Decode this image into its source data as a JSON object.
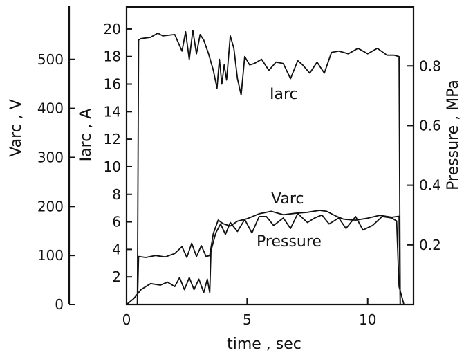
{
  "chart_data": {
    "type": "line",
    "xlabel": "time , sec",
    "x_ticks": [
      0,
      5,
      10
    ],
    "xlim": [
      0,
      11.9
    ],
    "axes": {
      "varc": {
        "label": "Varc , V",
        "ticks": [
          0,
          100,
          200,
          300,
          400,
          500
        ],
        "lim": [
          0,
          590
        ]
      },
      "iarc": {
        "label": "Iarc , A",
        "ticks": [
          2,
          4,
          6,
          8,
          10,
          12,
          14,
          16,
          18,
          20
        ],
        "lim": [
          0,
          21
        ]
      },
      "pressure": {
        "label": "Pressure , MPa",
        "ticks": [
          0.2,
          0.4,
          0.6,
          0.8
        ],
        "lim": [
          0,
          0.97
        ]
      }
    },
    "series": [
      {
        "name": "Iarc",
        "axis": "iarc",
        "x": [
          0.45,
          0.5,
          0.6,
          1.0,
          1.3,
          1.5,
          2.0,
          2.3,
          2.45,
          2.6,
          2.75,
          2.9,
          3.05,
          3.2,
          3.4,
          3.6,
          3.75,
          3.85,
          3.95,
          4.05,
          4.15,
          4.3,
          4.45,
          4.6,
          4.75,
          4.9,
          5.1,
          5.3,
          5.6,
          5.9,
          6.2,
          6.5,
          6.8,
          7.1,
          7.3,
          7.6,
          7.9,
          8.2,
          8.5,
          8.8,
          9.2,
          9.6,
          10.0,
          10.4,
          10.8,
          11.1,
          11.3,
          11.35,
          11.5
        ],
        "y": [
          0.0,
          19.2,
          19.3,
          19.4,
          19.7,
          19.5,
          19.6,
          18.4,
          19.8,
          17.8,
          19.9,
          18.2,
          19.6,
          19.2,
          18.2,
          17.0,
          15.7,
          17.8,
          16.0,
          17.4,
          16.3,
          19.5,
          18.6,
          16.4,
          15.2,
          18.0,
          17.4,
          17.5,
          17.8,
          17.0,
          17.6,
          17.5,
          16.4,
          17.7,
          17.4,
          16.8,
          17.6,
          16.8,
          18.3,
          18.4,
          18.2,
          18.6,
          18.2,
          18.6,
          18.1,
          18.1,
          18.0,
          0.0,
          0.0
        ]
      },
      {
        "name": "Varc",
        "axis": "varc",
        "x": [
          0.45,
          0.5,
          0.8,
          1.2,
          1.6,
          2.0,
          2.3,
          2.5,
          2.7,
          2.9,
          3.1,
          3.3,
          3.45,
          3.6,
          3.8,
          4.0,
          4.3,
          4.6,
          5.0,
          5.5,
          6.0,
          6.5,
          7.0,
          7.5,
          8.0,
          8.3,
          8.7,
          9.0,
          9.5,
          10.0,
          10.5,
          11.0,
          11.3,
          11.35,
          11.5
        ],
        "y": [
          0,
          98,
          96,
          100,
          97,
          104,
          118,
          96,
          125,
          98,
          120,
          98,
          100,
          145,
          172,
          165,
          160,
          170,
          175,
          185,
          190,
          183,
          186,
          188,
          192,
          190,
          180,
          174,
          172,
          176,
          182,
          178,
          180,
          0,
          0
        ]
      },
      {
        "name": "Pressure",
        "axis": "pressure",
        "x": [
          0.0,
          0.3,
          0.6,
          1.0,
          1.4,
          1.7,
          2.0,
          2.2,
          2.4,
          2.6,
          2.8,
          3.0,
          3.2,
          3.35,
          3.45,
          3.5,
          3.7,
          3.9,
          4.1,
          4.3,
          4.6,
          4.9,
          5.2,
          5.5,
          5.8,
          6.1,
          6.5,
          6.8,
          7.1,
          7.5,
          7.8,
          8.1,
          8.4,
          8.8,
          9.1,
          9.5,
          9.8,
          10.2,
          10.6,
          11.0,
          11.2,
          11.3,
          11.5
        ],
        "y": [
          0.0,
          0.02,
          0.05,
          0.07,
          0.065,
          0.075,
          0.06,
          0.09,
          0.05,
          0.09,
          0.05,
          0.085,
          0.04,
          0.085,
          0.04,
          0.18,
          0.24,
          0.27,
          0.235,
          0.275,
          0.245,
          0.285,
          0.24,
          0.295,
          0.295,
          0.265,
          0.29,
          0.255,
          0.305,
          0.275,
          0.29,
          0.3,
          0.27,
          0.29,
          0.255,
          0.295,
          0.25,
          0.265,
          0.295,
          0.29,
          0.28,
          0.06,
          0.0
        ]
      }
    ],
    "annotations": [
      {
        "text": "Iarc",
        "near_series": "Iarc"
      },
      {
        "text": "Varc",
        "near_series": "Varc"
      },
      {
        "text": "Pressure",
        "near_series": "Pressure"
      }
    ],
    "grid": false,
    "legend": "none"
  }
}
